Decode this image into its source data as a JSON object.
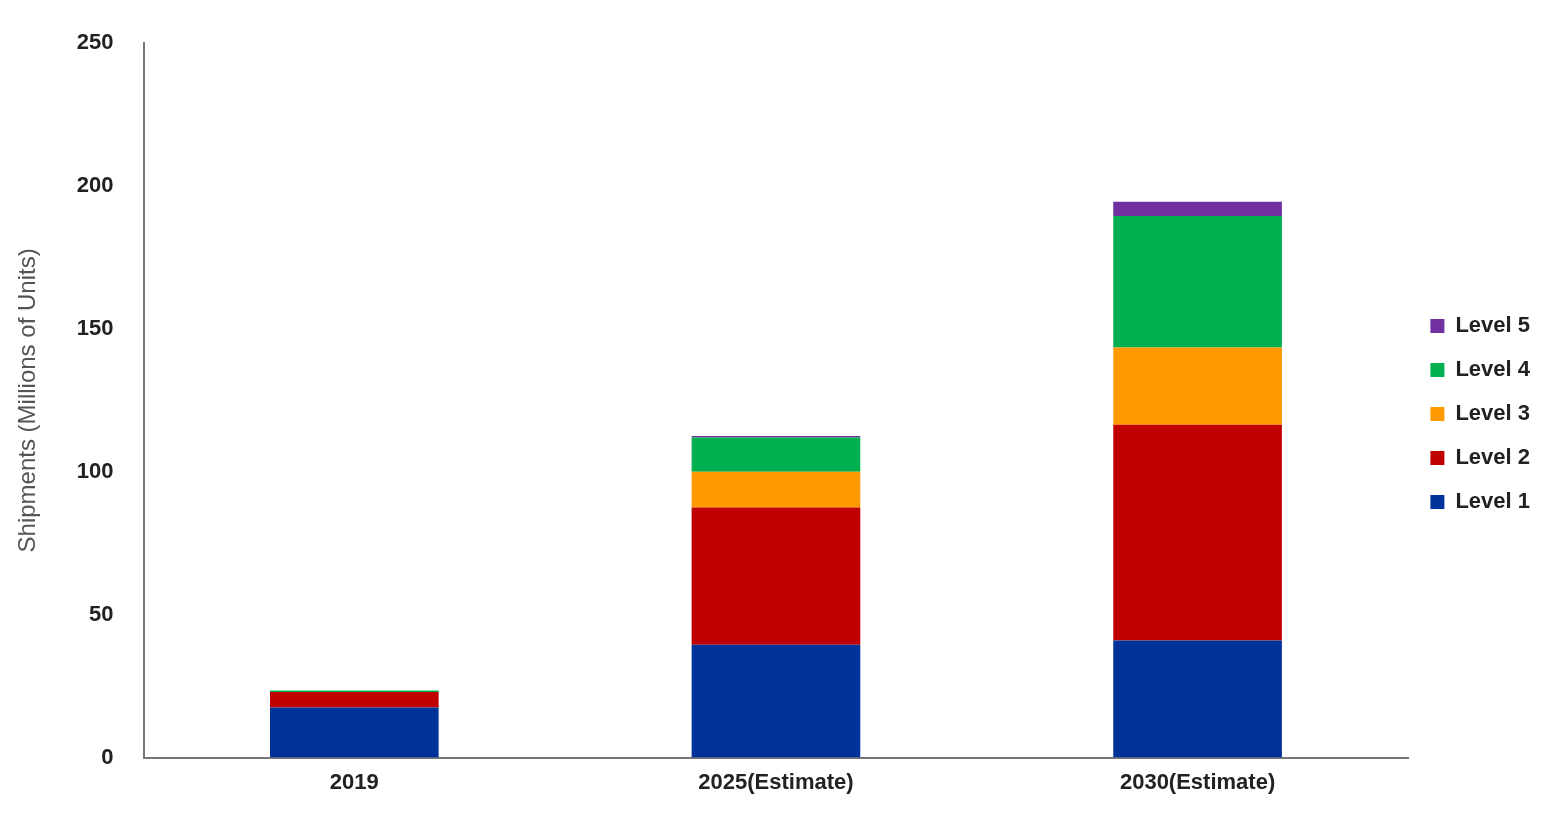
{
  "chart_data": {
    "type": "bar",
    "stacked": true,
    "ylabel": "Shipments (Millions of Units)",
    "categories": [
      "2019",
      "2025(Estimate)",
      "2030(Estimate)"
    ],
    "series": [
      {
        "name": "Level 1",
        "color": "#003399",
        "values": [
          17.5,
          39.5,
          41
        ]
      },
      {
        "name": "Level 2",
        "color": "#c00000",
        "values": [
          5.5,
          48,
          75.5
        ]
      },
      {
        "name": "Level 3",
        "color": "#ff9900",
        "values": [
          0,
          12.5,
          27
        ]
      },
      {
        "name": "Level 4",
        "color": "#00b050",
        "values": [
          0.5,
          12,
          46
        ]
      },
      {
        "name": "Level 5",
        "color": "#7030a0",
        "values": [
          0,
          0.5,
          5
        ]
      }
    ],
    "ylim": [
      0,
      250
    ],
    "yticks": [
      0,
      50,
      100,
      150,
      200,
      250
    ],
    "grid": false,
    "legend": "right"
  }
}
